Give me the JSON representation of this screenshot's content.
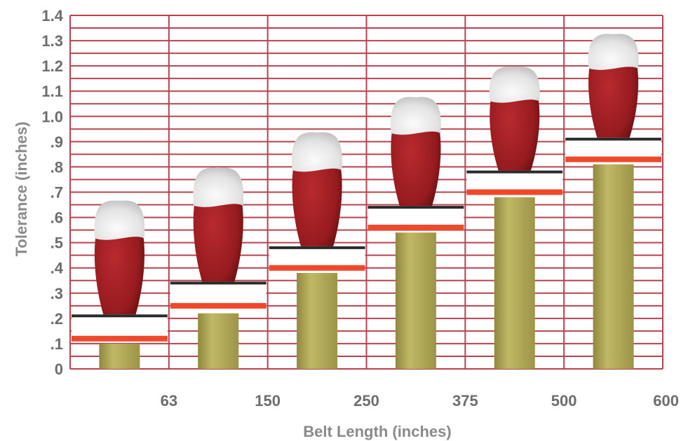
{
  "chart_data": {
    "type": "bar",
    "xlabel": "Belt Length (inches)",
    "ylabel": "Tolerance (inches)",
    "y_tick_labels": [
      "0",
      ".1",
      ".2",
      ".3",
      ".4",
      ".5",
      ".6",
      ".7",
      ".8",
      ".9",
      "1.0",
      "1.1",
      "1.2",
      "1.3",
      "1.4"
    ],
    "x_tick_labels": [
      "63",
      "150",
      "250",
      "375",
      "500",
      "600"
    ],
    "ylim": [
      0,
      1.4
    ],
    "grid": true,
    "categories": [
      "0-63",
      "63-150",
      "150-250",
      "250-375",
      "375-500",
      "500-600"
    ],
    "series": [
      {
        "values": [
          0.1,
          0.22,
          0.38,
          0.54,
          0.68,
          0.81
        ]
      }
    ],
    "tolerance_line": [
      0.12,
      0.25,
      0.4,
      0.56,
      0.7,
      0.83
    ],
    "tolerance_band_top": [
      0.21,
      0.34,
      0.48,
      0.64,
      0.78,
      0.91
    ],
    "bullet_top": [
      0.66,
      0.79,
      0.93,
      1.07,
      1.19,
      1.32
    ],
    "colors": {
      "grid": "#b8434e",
      "bar": "#b2a956",
      "band": "#ffffff",
      "band_top": "#2a2a2a",
      "band_line": "#f0482b",
      "bullet": "#9a1b1f",
      "bullet_tip": "#e9e9e9",
      "text": "#6d6d6d"
    }
  }
}
